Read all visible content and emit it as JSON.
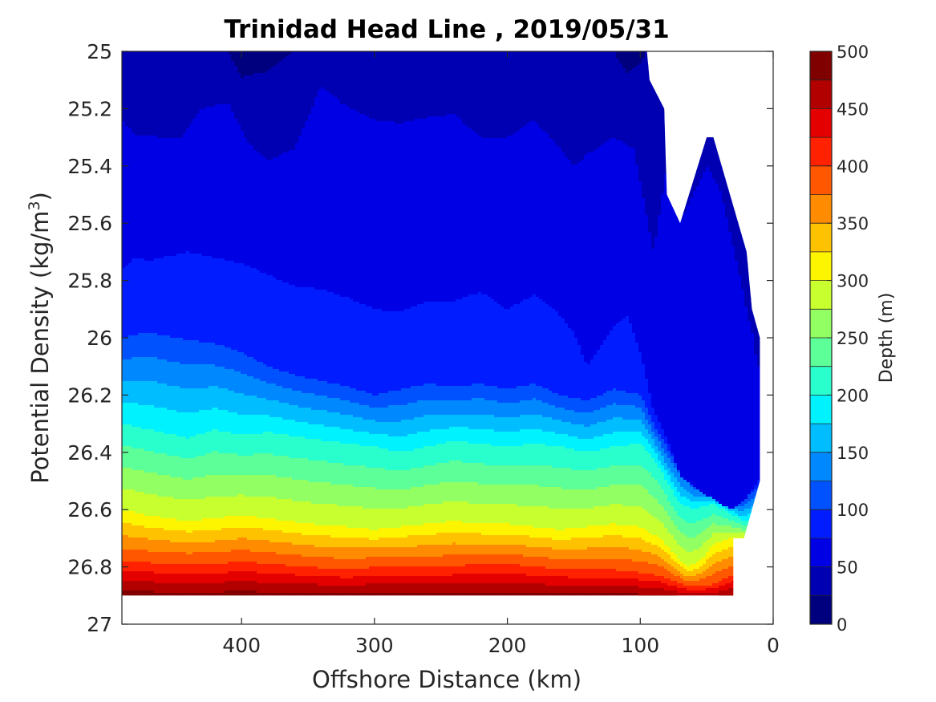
{
  "chart_data": {
    "type": "filled-contour",
    "title": "Trinidad Head Line , 2019/05/31",
    "xlabel": "Offshore Distance (km)",
    "ylabel": "Potential Density (kg/m",
    "ylabel_superscript": "3",
    "ylabel_close": ")",
    "x_reversed": true,
    "y_reversed": true,
    "xlim": [
      0,
      490
    ],
    "ylim": [
      25,
      27
    ],
    "xticks": [
      400,
      300,
      200,
      100,
      0
    ],
    "yticks": [
      "25",
      "25.2",
      "25.4",
      "25.6",
      "25.8",
      "26",
      "26.2",
      "26.4",
      "26.6",
      "26.8",
      "27"
    ],
    "ytick_values": [
      25,
      25.2,
      25.4,
      25.6,
      25.8,
      26,
      26.2,
      26.4,
      26.6,
      26.8,
      27
    ],
    "colorbar": {
      "label": "Depth (m)",
      "range": [
        0,
        500
      ],
      "ticks": [
        0,
        50,
        100,
        150,
        200,
        250,
        300,
        350,
        400,
        450,
        500
      ],
      "levels": [
        0,
        25,
        50,
        75,
        100,
        125,
        150,
        175,
        200,
        225,
        250,
        275,
        300,
        325,
        350,
        375,
        400,
        425,
        450,
        475,
        500
      ],
      "colormap": "jet",
      "colors": [
        "#00007f",
        "#0000b2",
        "#0000e5",
        "#001cff",
        "#0052ff",
        "#0088ff",
        "#00bdff",
        "#00f2ff",
        "#28ffcd",
        "#5dff98",
        "#92ff63",
        "#c8ff2e",
        "#fdf500",
        "#ffc200",
        "#ff8c00",
        "#ff5700",
        "#ff2100",
        "#e50000",
        "#b20000",
        "#800000"
      ]
    },
    "depth_contours": [
      {
        "depth": 25,
        "points": [
          [
            490,
            25
          ],
          [
            470,
            25
          ],
          [
            420,
            25
          ],
          [
            410,
            25
          ],
          [
            400,
            25.09
          ],
          [
            380,
            25.07
          ],
          [
            360,
            25
          ],
          [
            320,
            25
          ],
          [
            120,
            25
          ],
          [
            110,
            25.08
          ],
          [
            100,
            25.04
          ],
          [
            95,
            25
          ]
        ]
      },
      {
        "depth": 50,
        "points": [
          [
            490,
            25.24
          ],
          [
            480,
            25.29
          ],
          [
            460,
            25.3
          ],
          [
            445,
            25.3
          ],
          [
            430,
            25.2
          ],
          [
            410,
            25.18
          ],
          [
            395,
            25.32
          ],
          [
            380,
            25.38
          ],
          [
            360,
            25.34
          ],
          [
            340,
            25.12
          ],
          [
            325,
            25.18
          ],
          [
            300,
            25.24
          ],
          [
            280,
            25.25
          ],
          [
            260,
            25.23
          ],
          [
            240,
            25.22
          ],
          [
            220,
            25.3
          ],
          [
            200,
            25.3
          ],
          [
            180,
            25.24
          ],
          [
            160,
            25.34
          ],
          [
            150,
            25.4
          ],
          [
            140,
            25.36
          ],
          [
            120,
            25.3
          ],
          [
            105,
            25.34
          ],
          [
            95,
            25.58
          ],
          [
            90,
            25.7
          ],
          [
            80,
            25.4
          ],
          [
            75,
            25.5
          ],
          [
            70,
            25.6
          ],
          [
            50,
            25.4
          ],
          [
            40,
            25.48
          ],
          [
            30,
            25.68
          ],
          [
            20,
            25.9
          ],
          [
            15,
            26.0
          ],
          [
            12,
            26.1
          ]
        ]
      },
      {
        "depth": 75,
        "points": [
          [
            490,
            25.76
          ],
          [
            480,
            25.72
          ],
          [
            470,
            25.73
          ],
          [
            440,
            25.7
          ],
          [
            420,
            25.72
          ],
          [
            400,
            25.74
          ],
          [
            380,
            25.78
          ],
          [
            360,
            25.82
          ],
          [
            340,
            25.83
          ],
          [
            320,
            25.86
          ],
          [
            300,
            25.9
          ],
          [
            280,
            25.91
          ],
          [
            260,
            25.87
          ],
          [
            240,
            25.87
          ],
          [
            220,
            25.84
          ],
          [
            200,
            25.9
          ],
          [
            180,
            25.85
          ],
          [
            165,
            25.9
          ],
          [
            150,
            25.98
          ],
          [
            140,
            26.1
          ],
          [
            130,
            26.03
          ],
          [
            120,
            25.96
          ],
          [
            110,
            25.92
          ],
          [
            100,
            26.05
          ],
          [
            90,
            26.25
          ],
          [
            80,
            26.35
          ],
          [
            70,
            26.48
          ],
          [
            60,
            26.52
          ],
          [
            50,
            26.55
          ],
          [
            40,
            26.58
          ],
          [
            30,
            26.6
          ],
          [
            20,
            26.56
          ],
          [
            12,
            26.5
          ]
        ]
      },
      {
        "depth": 100,
        "points": [
          [
            490,
            26.0
          ],
          [
            470,
            25.98
          ],
          [
            450,
            26.0
          ],
          [
            420,
            26.02
          ],
          [
            400,
            26.05
          ],
          [
            380,
            26.1
          ],
          [
            360,
            26.13
          ],
          [
            340,
            26.15
          ],
          [
            320,
            26.17
          ],
          [
            300,
            26.2
          ],
          [
            280,
            26.18
          ],
          [
            260,
            26.16
          ],
          [
            240,
            26.17
          ],
          [
            220,
            26.16
          ],
          [
            200,
            26.18
          ],
          [
            180,
            26.16
          ],
          [
            160,
            26.2
          ],
          [
            140,
            26.22
          ],
          [
            120,
            26.18
          ],
          [
            100,
            26.2
          ],
          [
            90,
            26.3
          ],
          [
            80,
            26.38
          ],
          [
            70,
            26.45
          ],
          [
            60,
            26.5
          ],
          [
            40,
            26.55
          ],
          [
            25,
            26.58
          ],
          [
            12,
            26.52
          ]
        ]
      },
      {
        "depth": 200,
        "points": [
          [
            490,
            26.3
          ],
          [
            470,
            26.32
          ],
          [
            440,
            26.35
          ],
          [
            420,
            26.32
          ],
          [
            400,
            26.34
          ],
          [
            380,
            26.33
          ],
          [
            350,
            26.35
          ],
          [
            320,
            26.37
          ],
          [
            300,
            26.38
          ],
          [
            280,
            26.4
          ],
          [
            260,
            26.38
          ],
          [
            240,
            26.36
          ],
          [
            220,
            26.37
          ],
          [
            200,
            26.38
          ],
          [
            180,
            26.37
          ],
          [
            160,
            26.38
          ],
          [
            140,
            26.4
          ],
          [
            120,
            26.38
          ],
          [
            100,
            26.37
          ],
          [
            90,
            26.42
          ],
          [
            80,
            26.5
          ],
          [
            70,
            26.58
          ],
          [
            60,
            26.6
          ],
          [
            45,
            26.58
          ],
          [
            30,
            26.62
          ],
          [
            22,
            26.64
          ]
        ]
      },
      {
        "depth": 300,
        "points": [
          [
            490,
            26.6
          ],
          [
            470,
            26.62
          ],
          [
            440,
            26.64
          ],
          [
            420,
            26.63
          ],
          [
            400,
            26.62
          ],
          [
            380,
            26.63
          ],
          [
            350,
            26.65
          ],
          [
            320,
            26.66
          ],
          [
            300,
            26.67
          ],
          [
            280,
            26.66
          ],
          [
            260,
            26.65
          ],
          [
            240,
            26.64
          ],
          [
            220,
            26.65
          ],
          [
            200,
            26.65
          ],
          [
            180,
            26.66
          ],
          [
            160,
            26.67
          ],
          [
            140,
            26.66
          ],
          [
            120,
            26.65
          ],
          [
            100,
            26.66
          ],
          [
            85,
            26.7
          ],
          [
            75,
            26.75
          ],
          [
            65,
            26.8
          ],
          [
            55,
            26.78
          ],
          [
            45,
            26.72
          ],
          [
            32,
            26.7
          ]
        ]
      },
      {
        "depth": 400,
        "points": [
          [
            490,
            26.78
          ],
          [
            450,
            26.79
          ],
          [
            420,
            26.79
          ],
          [
            400,
            26.78
          ],
          [
            380,
            26.79
          ],
          [
            350,
            26.8
          ],
          [
            320,
            26.81
          ],
          [
            300,
            26.8
          ],
          [
            280,
            26.8
          ],
          [
            250,
            26.8
          ],
          [
            220,
            26.79
          ],
          [
            200,
            26.79
          ],
          [
            180,
            26.8
          ],
          [
            150,
            26.81
          ],
          [
            120,
            26.81
          ],
          [
            100,
            26.82
          ],
          [
            85,
            26.83
          ],
          [
            70,
            26.86
          ],
          [
            60,
            26.87
          ],
          [
            45,
            26.86
          ],
          [
            32,
            26.83
          ]
        ]
      }
    ],
    "data_domain": [
      [
        490,
        25
      ],
      [
        95,
        25
      ],
      [
        93,
        25.1
      ],
      [
        82,
        25.2
      ],
      [
        80,
        25.5
      ],
      [
        70,
        25.6
      ],
      [
        50,
        25.3
      ],
      [
        45,
        25.3
      ],
      [
        20,
        25.7
      ],
      [
        16,
        25.9
      ],
      [
        10,
        26.0
      ],
      [
        10,
        26.5
      ],
      [
        22,
        26.7
      ],
      [
        30,
        26.7
      ],
      [
        30,
        26.9
      ],
      [
        490,
        26.9
      ]
    ]
  }
}
